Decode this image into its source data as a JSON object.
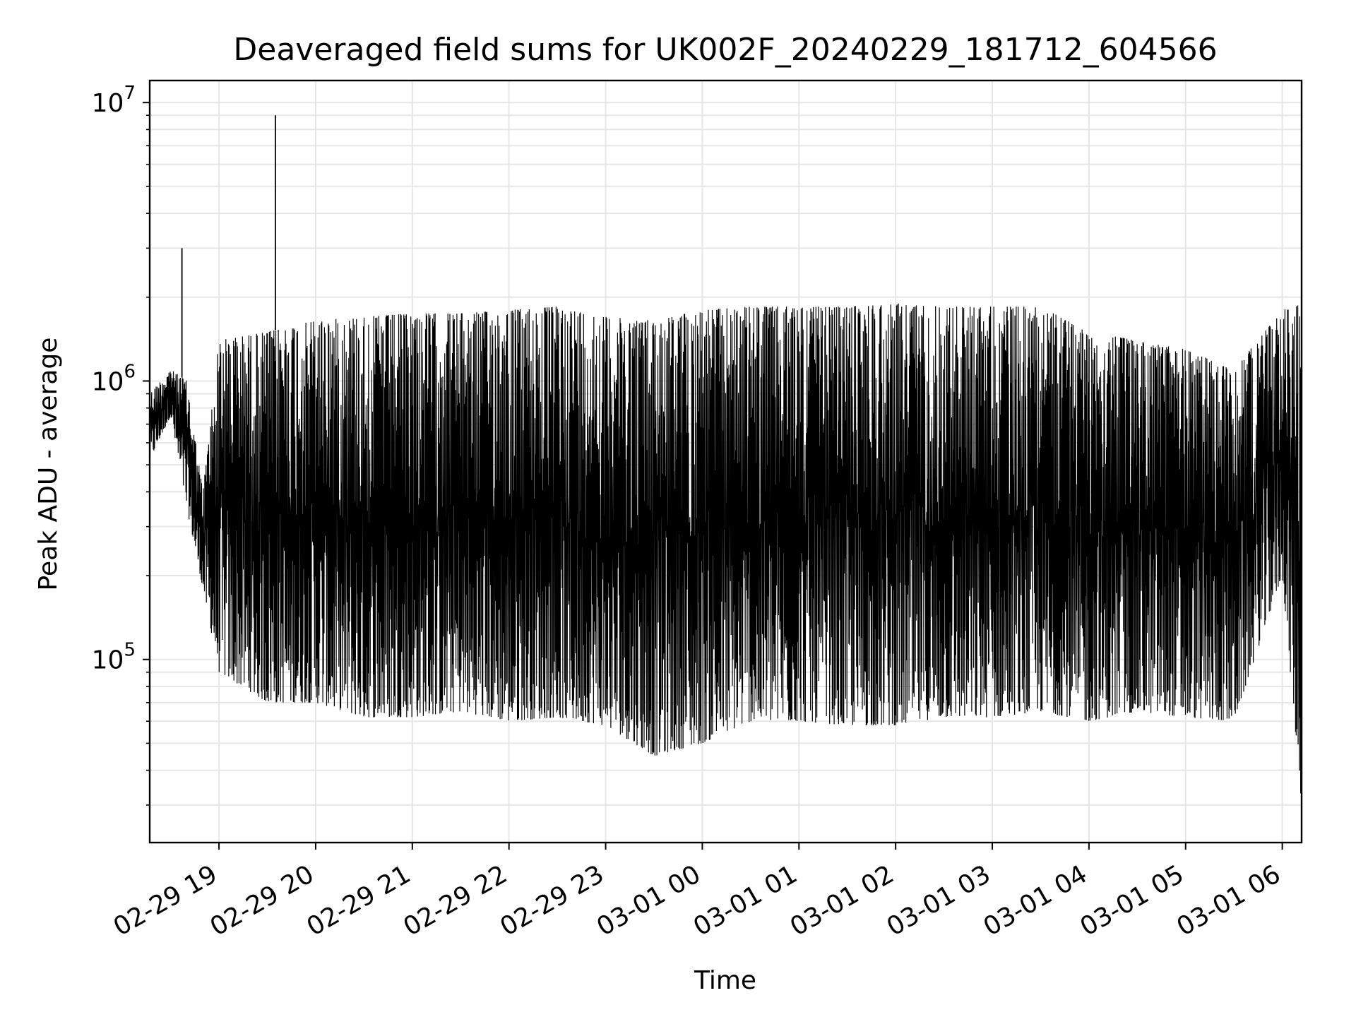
{
  "chart_data": {
    "type": "line",
    "title": "Deaveraged field sums for UK002F_20240229_181712_604566",
    "xlabel": "Time",
    "ylabel": "Peak ADU - average",
    "y_scale": "log",
    "ylim": [
      22000,
      12000000
    ],
    "xlim": [
      "2024-02-29 18:17",
      "2024-03-01 06:12"
    ],
    "grid": true,
    "line_color": "#000000",
    "x_ticks": [
      {
        "value": "2024-02-29 19:00",
        "label": "02-29 19"
      },
      {
        "value": "2024-02-29 20:00",
        "label": "02-29 20"
      },
      {
        "value": "2024-02-29 21:00",
        "label": "02-29 21"
      },
      {
        "value": "2024-02-29 22:00",
        "label": "02-29 22"
      },
      {
        "value": "2024-02-29 23:00",
        "label": "02-29 23"
      },
      {
        "value": "2024-03-01 00:00",
        "label": "03-01 00"
      },
      {
        "value": "2024-03-01 01:00",
        "label": "03-01 01"
      },
      {
        "value": "2024-03-01 02:00",
        "label": "03-01 02"
      },
      {
        "value": "2024-03-01 03:00",
        "label": "03-01 03"
      },
      {
        "value": "2024-03-01 04:00",
        "label": "03-01 04"
      },
      {
        "value": "2024-03-01 05:00",
        "label": "03-01 05"
      },
      {
        "value": "2024-03-01 06:00",
        "label": "03-01 06"
      }
    ],
    "y_ticks": [
      {
        "value": 100000,
        "base": "10",
        "exp": "5"
      },
      {
        "value": 1000000,
        "base": "10",
        "exp": "6"
      },
      {
        "value": 10000000,
        "base": "10",
        "exp": "7"
      }
    ],
    "series": [
      {
        "envelope": [
          {
            "x": "2024-02-29 18:17",
            "low": 520000,
            "high": 900000
          },
          {
            "x": "2024-02-29 18:30",
            "low": 750000,
            "high": 1100000
          },
          {
            "x": "2024-02-29 18:40",
            "low": 350000,
            "high": 1000000
          },
          {
            "x": "2024-02-29 18:50",
            "low": 180000,
            "high": 400000
          },
          {
            "x": "2024-02-29 19:00",
            "low": 90000,
            "high": 1400000
          },
          {
            "x": "2024-02-29 19:30",
            "low": 70000,
            "high": 1500000
          },
          {
            "x": "2024-02-29 20:00",
            "low": 70000,
            "high": 1650000
          },
          {
            "x": "2024-02-29 20:30",
            "low": 62000,
            "high": 1700000
          },
          {
            "x": "2024-02-29 21:00",
            "low": 62000,
            "high": 1750000
          },
          {
            "x": "2024-02-29 21:30",
            "low": 65000,
            "high": 1750000
          },
          {
            "x": "2024-02-29 22:00",
            "low": 60000,
            "high": 1800000
          },
          {
            "x": "2024-02-29 22:30",
            "low": 62000,
            "high": 1850000
          },
          {
            "x": "2024-02-29 23:00",
            "low": 58000,
            "high": 1700000
          },
          {
            "x": "2024-02-29 23:30",
            "low": 45000,
            "high": 1650000
          },
          {
            "x": "2024-03-01 00:00",
            "low": 50000,
            "high": 1800000
          },
          {
            "x": "2024-03-01 00:30",
            "low": 60000,
            "high": 1850000
          },
          {
            "x": "2024-03-01 01:00",
            "low": 60000,
            "high": 1850000
          },
          {
            "x": "2024-03-01 01:30",
            "low": 58000,
            "high": 1850000
          },
          {
            "x": "2024-03-01 02:00",
            "low": 58000,
            "high": 1900000
          },
          {
            "x": "2024-03-01 02:30",
            "low": 62000,
            "high": 1850000
          },
          {
            "x": "2024-03-01 03:00",
            "low": 62000,
            "high": 1850000
          },
          {
            "x": "2024-03-01 03:30",
            "low": 65000,
            "high": 1850000
          },
          {
            "x": "2024-03-01 04:00",
            "low": 60000,
            "high": 1500000
          },
          {
            "x": "2024-03-01 04:30",
            "low": 65000,
            "high": 1400000
          },
          {
            "x": "2024-03-01 05:00",
            "low": 62000,
            "high": 1300000
          },
          {
            "x": "2024-03-01 05:30",
            "low": 60000,
            "high": 1100000
          },
          {
            "x": "2024-03-01 06:00",
            "low": 200000,
            "high": 1800000
          },
          {
            "x": "2024-03-01 06:12",
            "low": 30000,
            "high": 1900000
          }
        ],
        "spikes": [
          {
            "x": "2024-02-29 18:37",
            "value": 3000000
          },
          {
            "x": "2024-02-29 19:35",
            "value": 9000000
          }
        ]
      }
    ]
  }
}
